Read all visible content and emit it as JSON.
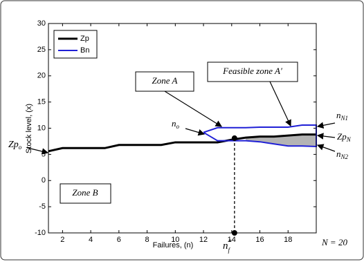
{
  "chart_data": {
    "type": "line",
    "xlabel": "Failures, (n)",
    "ylabel": "Stock level, (x)",
    "xlim": [
      1,
      20
    ],
    "ylim": [
      -10,
      30
    ],
    "xticks": [
      2,
      4,
      6,
      8,
      10,
      12,
      14,
      16,
      18
    ],
    "yticks": [
      -10,
      -5,
      0,
      5,
      10,
      15,
      20,
      25,
      30
    ],
    "legend": "upper left",
    "series": [
      {
        "name": "Zp",
        "color": "#000000",
        "x": [
          1,
          2,
          3,
          4,
          5,
          6,
          7,
          8,
          9,
          10,
          11,
          12,
          13,
          14,
          15,
          16,
          17,
          18,
          19,
          20
        ],
        "values": [
          5.6,
          6.2,
          6.2,
          6.2,
          6.2,
          6.8,
          6.8,
          6.8,
          6.8,
          7.3,
          7.3,
          7.3,
          7.3,
          7.8,
          8.2,
          8.4,
          8.4,
          8.6,
          8.8,
          8.8
        ]
      },
      {
        "name": "Bn",
        "color": "#1f1fd6",
        "x": [
          12,
          13,
          14,
          15,
          16,
          17,
          18,
          19,
          20,
          20,
          19,
          18,
          17,
          16,
          15,
          14,
          13,
          12
        ],
        "values": [
          9.2,
          10.1,
          10.1,
          10.1,
          10.2,
          10.2,
          10.2,
          10.6,
          10.6,
          6.5,
          6.6,
          6.6,
          7.0,
          7.4,
          7.6,
          7.6,
          7.6,
          9.2
        ]
      }
    ],
    "vline": {
      "x": 14.2,
      "y0": -10,
      "y1": 8.1
    },
    "annotations": {
      "zone_a": "Zone A",
      "zone_b": "Zone B",
      "feasible": "Feasible zone A′",
      "n_o": {
        "base": "n",
        "sub": "o"
      },
      "n_n1": {
        "base": "n",
        "sub": "N1"
      },
      "zp_n": {
        "base": "Zp",
        "sub": "N"
      },
      "n_n2": {
        "base": "n",
        "sub": "N2"
      },
      "zp_o": {
        "base": "Zp",
        "sub": "o"
      },
      "n_f": {
        "base": "n",
        "sub": "f",
        "sup": "*"
      },
      "n_total": "N = 20"
    }
  }
}
